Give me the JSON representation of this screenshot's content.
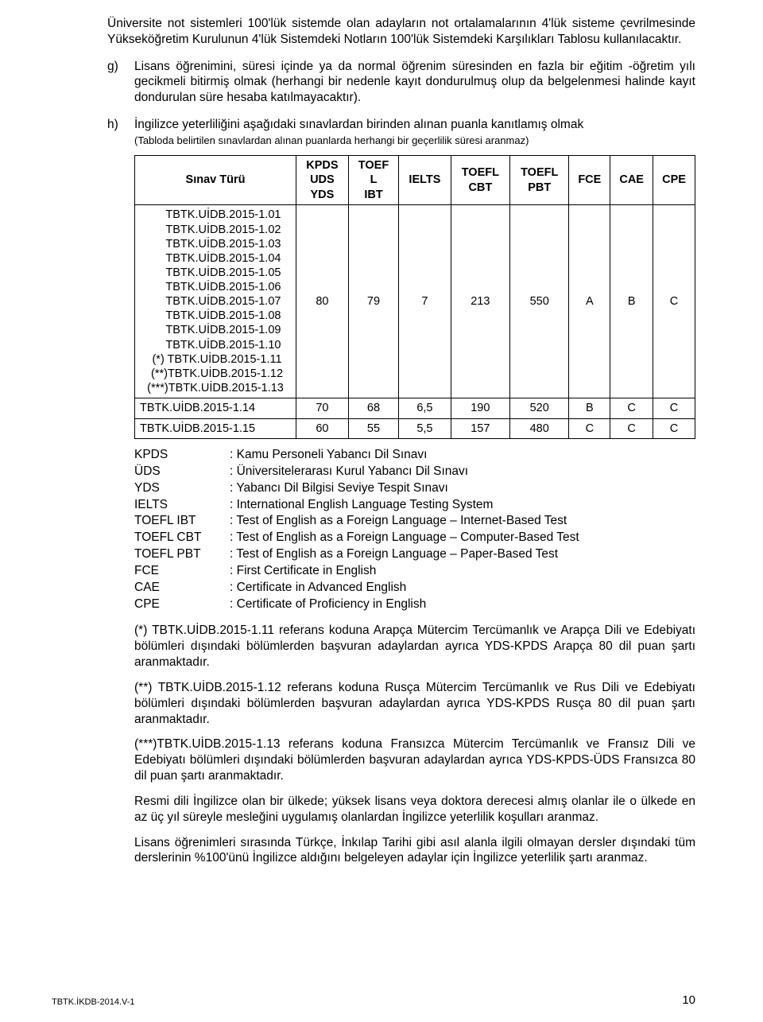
{
  "intro": "Üniversite not sistemleri 100'lük sistemde olan adayların not ortalamalarının 4'lük sisteme çevrilmesinde Yükseköğretim Kurulunun 4'lük Sistemdeki Notların 100'lük Sistemdeki Karşılıkları Tablosu kullanılacaktır.",
  "g_marker": "g)",
  "g_body": "Lisans öğrenimini, süresi içinde ya da normal öğrenim süresinden en fazla bir eğitim -öğretim yılı gecikmeli bitirmiş olmak (herhangi bir nedenle kayıt dondurulmuş olup da belgelenmesi halinde kayıt dondurulan süre hesaba katılmayacaktır).",
  "h_marker": "h)",
  "h_body": "İngilizce yeterliliğini aşağıdaki sınavlardan birinden alınan puanla kanıtlamış olmak",
  "h_sub": "(Tabloda belirtilen sınavlardan alınan puanlarda herhangi bir geçerlilik süresi aranmaz)",
  "table": {
    "headers": [
      "Sınav Türü",
      "KPDS\nUDS\nYDS",
      "TOEF\nL\nIBT",
      "IELTS",
      "TOEFL\nCBT",
      "TOEFL\nPBT",
      "FCE",
      "CAE",
      "CPE"
    ],
    "row1_codes": "     TBTK.UİDB.2015-1.01\n     TBTK.UİDB.2015-1.02\n     TBTK.UİDB.2015-1.03\n     TBTK.UİDB.2015-1.04\n     TBTK.UİDB.2015-1.05\n     TBTK.UİDB.2015-1.06\n     TBTK.UİDB.2015-1.07\n     TBTK.UİDB.2015-1.08\n     TBTK.UİDB.2015-1.09\n     TBTK.UİDB.2015-1.10\n (*) TBTK.UİDB.2015-1.11\n (**)TBTK.UİDB.2015-1.12\n(***)TBTK.UİDB.2015-1.13",
    "row1_vals": [
      "80",
      "79",
      "7",
      "213",
      "550",
      "A",
      "B",
      "C"
    ],
    "row2_key": "TBTK.UİDB.2015-1.14",
    "row2_vals": [
      "70",
      "68",
      "6,5",
      "190",
      "520",
      "B",
      "C",
      "C"
    ],
    "row3_key": "TBTK.UİDB.2015-1.15",
    "row3_vals": [
      "60",
      "55",
      "5,5",
      "157",
      "480",
      "C",
      "C",
      "C"
    ]
  },
  "defs": [
    {
      "k": "KPDS",
      "v": ": Kamu Personeli Yabancı Dil Sınavı"
    },
    {
      "k": "ÜDS",
      "v": ": Üniversitelerarası Kurul Yabancı Dil Sınavı"
    },
    {
      "k": "YDS",
      "v": ": Yabancı Dil Bilgisi Seviye Tespit Sınavı"
    },
    {
      "k": "IELTS",
      "v": ": International English Language Testing System"
    },
    {
      "k": "TOEFL IBT",
      "v": ": Test of English as a Foreign Language – Internet-Based Test"
    },
    {
      "k": "TOEFL CBT",
      "v": ": Test of English as a Foreign Language – Computer-Based Test"
    },
    {
      "k": "TOEFL PBT",
      "v": ": Test of English as a Foreign Language – Paper-Based Test"
    },
    {
      "k": "FCE",
      "v": ": First Certificate in English"
    },
    {
      "k": "CAE",
      "v": ": Certificate in Advanced English"
    },
    {
      "k": "CPE",
      "v": ": Certificate of Proficiency in English"
    }
  ],
  "p1": "(*) TBTK.UİDB.2015-1.11 referans koduna Arapça Mütercim Tercümanlık ve Arapça Dili ve Edebiyatı bölümleri dışındaki bölümlerden başvuran adaylardan ayrıca YDS-KPDS Arapça 80 dil puan şartı aranmaktadır.",
  "p2": "(**) TBTK.UİDB.2015-1.12 referans koduna Rusça Mütercim Tercümanlık ve Rus Dili ve Edebiyatı bölümleri dışındaki bölümlerden başvuran adaylardan ayrıca YDS-KPDS Rusça 80 dil puan şartı aranmaktadır.",
  "p3": "(***)TBTK.UİDB.2015-1.13 referans koduna Fransızca Mütercim Tercümanlık ve Fransız Dili ve Edebiyatı bölümleri dışındaki bölümlerden başvuran adaylardan ayrıca YDS-KPDS-ÜDS Fransızca 80 dil puan şartı aranmaktadır.",
  "p4": "Resmi dili İngilizce olan bir ülkede; yüksek lisans veya doktora derecesi almış olanlar ile o ülkede en az üç yıl süreyle mesleğini uygulamış olanlardan İngilizce yeterlilik koşulları aranmaz.",
  "p5": "Lisans öğrenimleri sırasında Türkçe, İnkılap Tarihi gibi asıl alanla ilgili olmayan dersler dışındaki tüm derslerinin %100'ünü İngilizce aldığını belgeleyen adaylar için İngilizce yeterlilik şartı aranmaz.",
  "footer_left": "TBTK.İKDB-2014.V-1",
  "page_number": "10"
}
